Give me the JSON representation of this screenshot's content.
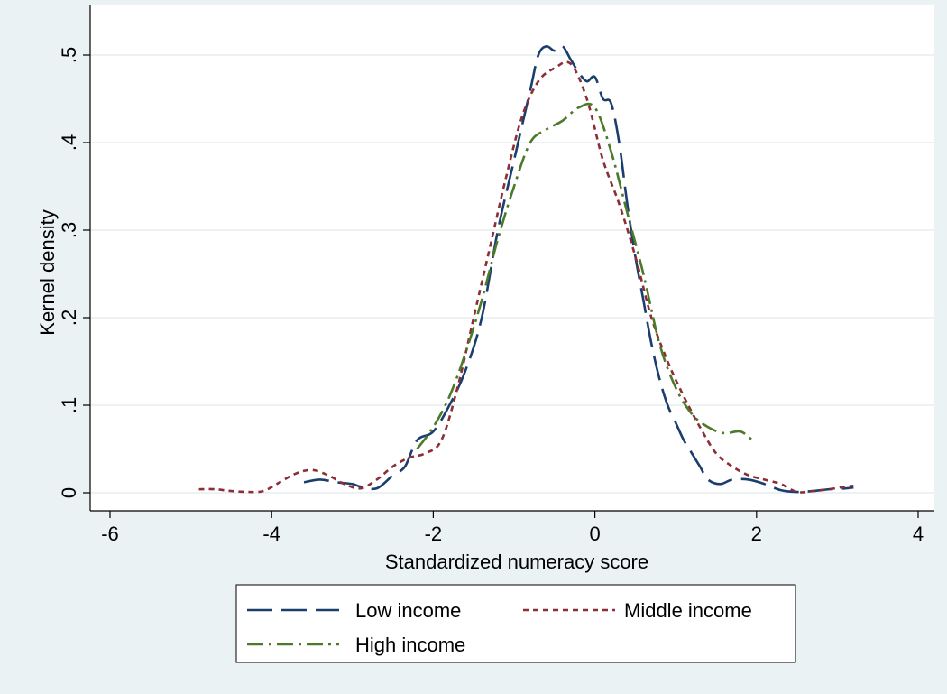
{
  "chart_data": {
    "type": "line",
    "title": "",
    "xlabel": "Standardized numeracy score",
    "ylabel": "Kernel density",
    "xlim": [
      -6,
      4
    ],
    "ylim": [
      0,
      0.5
    ],
    "x_ticks": [
      -6,
      -4,
      -2,
      0,
      2,
      4
    ],
    "x_tick_labels": [
      "-6",
      "-4",
      "-2",
      "0",
      "2",
      "4"
    ],
    "y_ticks": [
      0,
      0.1,
      0.2,
      0.3,
      0.4,
      0.5
    ],
    "y_tick_labels": [
      "0",
      ".1",
      ".2",
      ".3",
      ".4",
      ".5"
    ],
    "grid": "horizontal",
    "legend_position": "bottom",
    "series": [
      {
        "name": "Low income",
        "color": "#1a3e6e",
        "dash": "long-dash",
        "x": [
          -3.6,
          -3.4,
          -3.2,
          -3.0,
          -2.9,
          -2.7,
          -2.5,
          -2.35,
          -2.2,
          -2.0,
          -1.8,
          -1.6,
          -1.4,
          -1.2,
          -1.0,
          -0.8,
          -0.7,
          -0.6,
          -0.5,
          -0.4,
          -0.3,
          -0.2,
          -0.1,
          0.0,
          0.1,
          0.2,
          0.3,
          0.4,
          0.5,
          0.6,
          0.7,
          0.8,
          0.9,
          1.0,
          1.1,
          1.2,
          1.3,
          1.4,
          1.55,
          1.7,
          1.9,
          2.1,
          2.3,
          2.5,
          2.7,
          2.9,
          3.1,
          3.2
        ],
        "y": [
          0.012,
          0.015,
          0.012,
          0.01,
          0.007,
          0.005,
          0.02,
          0.03,
          0.06,
          0.07,
          0.1,
          0.14,
          0.2,
          0.3,
          0.38,
          0.46,
          0.5,
          0.51,
          0.505,
          0.51,
          0.495,
          0.48,
          0.47,
          0.475,
          0.45,
          0.445,
          0.4,
          0.33,
          0.27,
          0.22,
          0.17,
          0.13,
          0.1,
          0.08,
          0.06,
          0.045,
          0.03,
          0.015,
          0.01,
          0.015,
          0.015,
          0.01,
          0.003,
          0.001,
          0.002,
          0.004,
          0.005,
          0.006
        ]
      },
      {
        "name": "Middle income",
        "color": "#8b2e35",
        "dash": "short-dash",
        "x": [
          -4.9,
          -4.7,
          -4.5,
          -4.3,
          -4.1,
          -3.9,
          -3.7,
          -3.5,
          -3.3,
          -3.1,
          -2.9,
          -2.7,
          -2.5,
          -2.3,
          -2.1,
          -1.9,
          -1.7,
          -1.5,
          -1.3,
          -1.1,
          -0.9,
          -0.7,
          -0.5,
          -0.3,
          -0.1,
          0.1,
          0.3,
          0.5,
          0.7,
          0.9,
          1.1,
          1.3,
          1.5,
          1.7,
          1.9,
          2.1,
          2.3,
          2.5,
          2.7,
          2.9,
          3.1,
          3.2
        ],
        "y": [
          0.004,
          0.004,
          0.002,
          0.001,
          0.002,
          0.012,
          0.022,
          0.026,
          0.02,
          0.01,
          0.005,
          0.015,
          0.03,
          0.04,
          0.045,
          0.06,
          0.12,
          0.2,
          0.28,
          0.36,
          0.43,
          0.47,
          0.485,
          0.49,
          0.45,
          0.38,
          0.33,
          0.27,
          0.2,
          0.15,
          0.11,
          0.075,
          0.045,
          0.03,
          0.02,
          0.015,
          0.01,
          0.001,
          0.002,
          0.004,
          0.007,
          0.008
        ]
      },
      {
        "name": "High income",
        "color": "#4d7a2a",
        "dash": "dash-dot",
        "x": [
          -2.2,
          -2.0,
          -1.8,
          -1.6,
          -1.4,
          -1.2,
          -1.0,
          -0.8,
          -0.6,
          -0.4,
          -0.2,
          0.0,
          0.2,
          0.4,
          0.6,
          0.8,
          1.0,
          1.2,
          1.4,
          1.6,
          1.8,
          1.95
        ],
        "y": [
          0.05,
          0.075,
          0.11,
          0.16,
          0.22,
          0.29,
          0.35,
          0.4,
          0.415,
          0.425,
          0.44,
          0.44,
          0.39,
          0.32,
          0.25,
          0.17,
          0.12,
          0.09,
          0.075,
          0.068,
          0.07,
          0.06
        ]
      }
    ]
  }
}
